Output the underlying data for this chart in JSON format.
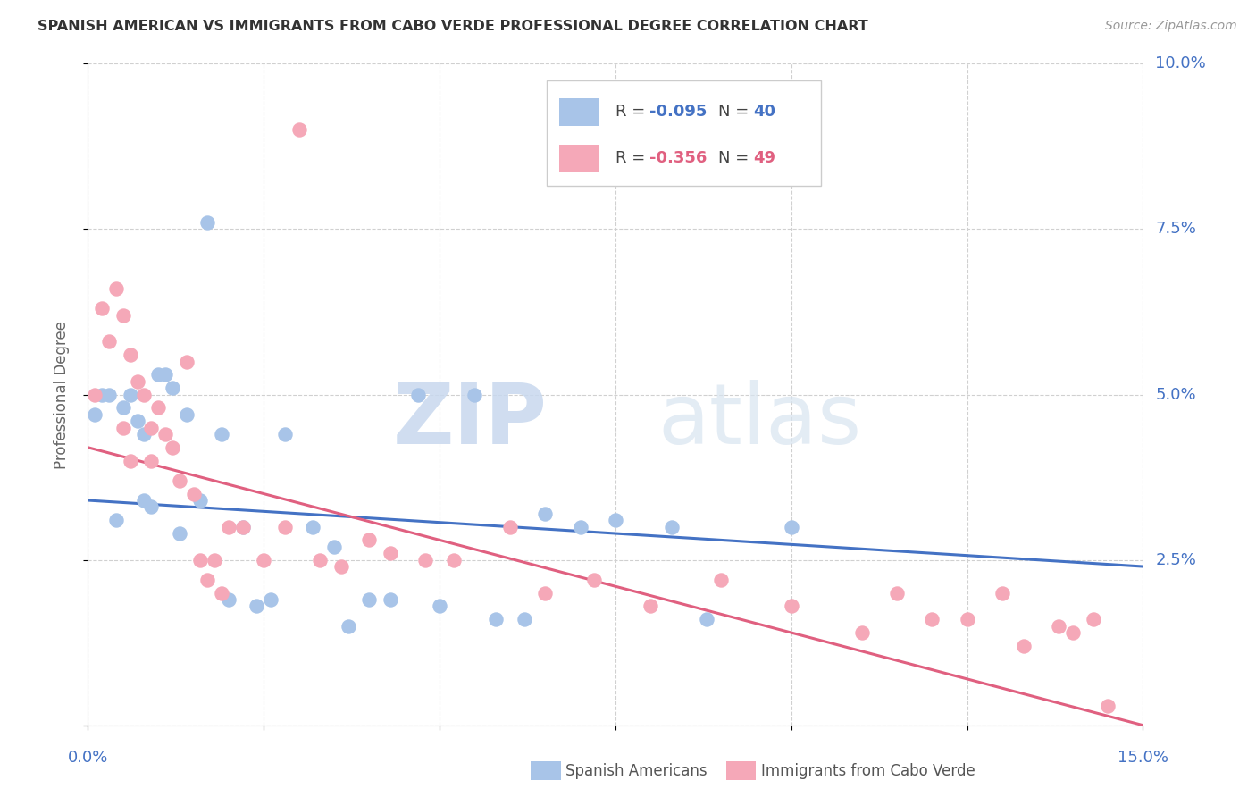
{
  "title": "SPANISH AMERICAN VS IMMIGRANTS FROM CABO VERDE PROFESSIONAL DEGREE CORRELATION CHART",
  "source": "Source: ZipAtlas.com",
  "ylabel": "Professional Degree",
  "xlim": [
    0.0,
    0.15
  ],
  "ylim": [
    0.0,
    0.1
  ],
  "watermark_zip": "ZIP",
  "watermark_atlas": "atlas",
  "legend_blue_r": "-0.095",
  "legend_blue_n": "40",
  "legend_pink_r": "-0.356",
  "legend_pink_n": "49",
  "legend_label_blue": "Spanish Americans",
  "legend_label_pink": "Immigrants from Cabo Verde",
  "blue_color": "#a8c4e8",
  "pink_color": "#f5a8b8",
  "trendline_blue_color": "#4472c4",
  "trendline_pink_color": "#e06080",
  "blue_x": [
    0.001,
    0.002,
    0.003,
    0.004,
    0.005,
    0.006,
    0.007,
    0.008,
    0.008,
    0.009,
    0.01,
    0.011,
    0.012,
    0.013,
    0.014,
    0.016,
    0.017,
    0.019,
    0.02,
    0.022,
    0.024,
    0.026,
    0.028,
    0.032,
    0.035,
    0.037,
    0.04,
    0.043,
    0.047,
    0.05,
    0.055,
    0.058,
    0.062,
    0.065,
    0.07,
    0.075,
    0.083,
    0.088,
    0.093,
    0.1
  ],
  "blue_y": [
    0.047,
    0.05,
    0.05,
    0.031,
    0.048,
    0.05,
    0.046,
    0.044,
    0.034,
    0.033,
    0.053,
    0.053,
    0.051,
    0.029,
    0.047,
    0.034,
    0.076,
    0.044,
    0.019,
    0.03,
    0.018,
    0.019,
    0.044,
    0.03,
    0.027,
    0.015,
    0.019,
    0.019,
    0.05,
    0.018,
    0.05,
    0.016,
    0.016,
    0.032,
    0.03,
    0.031,
    0.03,
    0.016,
    0.085,
    0.03
  ],
  "pink_x": [
    0.001,
    0.002,
    0.003,
    0.004,
    0.005,
    0.005,
    0.006,
    0.006,
    0.007,
    0.008,
    0.009,
    0.009,
    0.01,
    0.011,
    0.012,
    0.013,
    0.014,
    0.015,
    0.016,
    0.017,
    0.018,
    0.019,
    0.02,
    0.022,
    0.025,
    0.028,
    0.03,
    0.033,
    0.036,
    0.04,
    0.043,
    0.048,
    0.052,
    0.06,
    0.065,
    0.072,
    0.08,
    0.09,
    0.1,
    0.11,
    0.115,
    0.12,
    0.125,
    0.13,
    0.133,
    0.138,
    0.14,
    0.143,
    0.145
  ],
  "pink_y": [
    0.05,
    0.063,
    0.058,
    0.066,
    0.062,
    0.045,
    0.056,
    0.04,
    0.052,
    0.05,
    0.045,
    0.04,
    0.048,
    0.044,
    0.042,
    0.037,
    0.055,
    0.035,
    0.025,
    0.022,
    0.025,
    0.02,
    0.03,
    0.03,
    0.025,
    0.03,
    0.09,
    0.025,
    0.024,
    0.028,
    0.026,
    0.025,
    0.025,
    0.03,
    0.02,
    0.022,
    0.018,
    0.022,
    0.018,
    0.014,
    0.02,
    0.016,
    0.016,
    0.02,
    0.012,
    0.015,
    0.014,
    0.016,
    0.003
  ],
  "trendline_blue_x0": 0.0,
  "trendline_blue_x1": 0.15,
  "trendline_blue_y0": 0.034,
  "trendline_blue_y1": 0.024,
  "trendline_pink_x0": 0.0,
  "trendline_pink_x1": 0.15,
  "trendline_pink_y0": 0.042,
  "trendline_pink_y1": 0.0
}
